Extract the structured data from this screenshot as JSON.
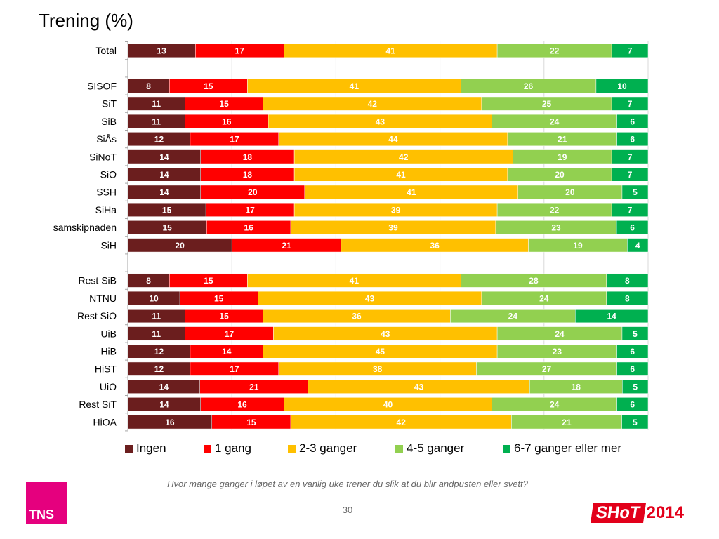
{
  "title": "Trening (%)",
  "question": "Hvor mange ganger i løpet av en vanlig uke trener du slik at du blir andpusten eller svett?",
  "page_number": "30",
  "tns_logo_text": "TNS",
  "shot_logo": {
    "text": "SHoT",
    "year": "2014"
  },
  "colors": {
    "series": [
      "#6b1e1e",
      "#ff0000",
      "#ffc000",
      "#92d050",
      "#00b050"
    ],
    "brand_tns": "#e5007e",
    "brand_shot": "#e2001a"
  },
  "chart_data": {
    "type": "bar",
    "orientation": "horizontal",
    "stacked": true,
    "title": "Trening (%)",
    "legend_position": "bottom",
    "grid": true,
    "series_names": [
      "Ingen",
      "1 gang",
      "2-3 ganger",
      "4-5 ganger",
      "6-7 ganger eller mer"
    ],
    "categories": [
      "Total",
      "",
      "SISOF",
      "SiT",
      "SiB",
      "SiÅs",
      "SiNoT",
      "SiO",
      "SSH",
      "SiHa",
      "samskipnaden",
      "SiH",
      "",
      "Rest SiB",
      "NTNU",
      "Rest SiO",
      "UiB",
      "HiB",
      "HiST",
      "UiO",
      "Rest SiT",
      "HiOA"
    ],
    "rows": [
      {
        "label": "Total",
        "values": [
          13,
          17,
          41,
          22,
          7
        ]
      },
      {
        "label": "",
        "values": []
      },
      {
        "label": "SISOF",
        "values": [
          8,
          15,
          41,
          26,
          10
        ]
      },
      {
        "label": "SiT",
        "values": [
          11,
          15,
          42,
          25,
          7
        ]
      },
      {
        "label": "SiB",
        "values": [
          11,
          16,
          43,
          24,
          6
        ]
      },
      {
        "label": "SiÅs",
        "values": [
          12,
          17,
          44,
          21,
          6
        ]
      },
      {
        "label": "SiNoT",
        "values": [
          14,
          18,
          42,
          19,
          7
        ]
      },
      {
        "label": "SiO",
        "values": [
          14,
          18,
          41,
          20,
          7
        ]
      },
      {
        "label": "SSH",
        "values": [
          14,
          20,
          41,
          20,
          5
        ]
      },
      {
        "label": "SiHa",
        "values": [
          15,
          17,
          39,
          22,
          7
        ]
      },
      {
        "label": "samskipnaden",
        "values": [
          15,
          16,
          39,
          23,
          6
        ]
      },
      {
        "label": "SiH",
        "values": [
          20,
          21,
          36,
          19,
          4
        ]
      },
      {
        "label": "",
        "values": []
      },
      {
        "label": "Rest SiB",
        "values": [
          8,
          15,
          41,
          28,
          8
        ]
      },
      {
        "label": "NTNU",
        "values": [
          10,
          15,
          43,
          24,
          8
        ]
      },
      {
        "label": "Rest SiO",
        "values": [
          11,
          15,
          36,
          24,
          14
        ]
      },
      {
        "label": "UiB",
        "values": [
          11,
          17,
          43,
          24,
          5
        ]
      },
      {
        "label": "HiB",
        "values": [
          12,
          14,
          45,
          23,
          6
        ]
      },
      {
        "label": "HiST",
        "values": [
          12,
          17,
          38,
          27,
          6
        ]
      },
      {
        "label": "UiO",
        "values": [
          14,
          21,
          43,
          18,
          5
        ]
      },
      {
        "label": "Rest SiT",
        "values": [
          14,
          16,
          40,
          24,
          6
        ]
      },
      {
        "label": "HiOA",
        "values": [
          16,
          15,
          42,
          21,
          5
        ]
      }
    ]
  }
}
